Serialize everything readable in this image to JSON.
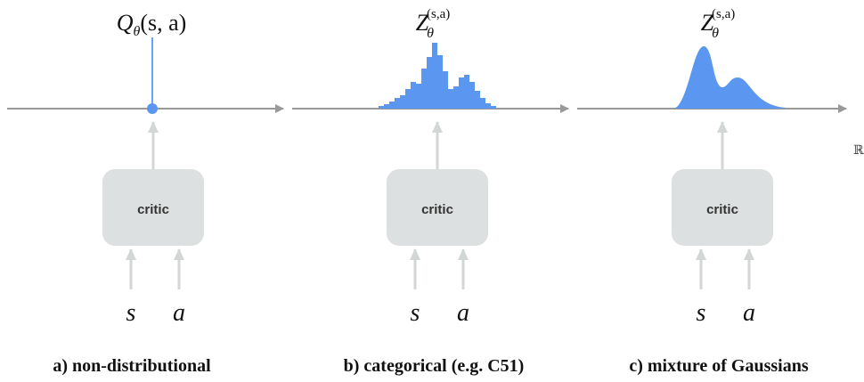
{
  "panels": [
    {
      "label": {
        "base": "Q",
        "sub": "θ",
        "args": "(s, a)"
      },
      "critic": "critic",
      "inputs": [
        "s",
        "a"
      ],
      "caption": "a) non-distributional"
    },
    {
      "label": {
        "base": "Z",
        "sub": "θ",
        "sup": "(s,a)"
      },
      "critic": "critic",
      "inputs": [
        "s",
        "a"
      ],
      "caption": "b) categorical (e.g. C51)"
    },
    {
      "label": {
        "base": "Z",
        "sub": "θ",
        "sup": "(s,a)"
      },
      "critic": "critic",
      "inputs": [
        "s",
        "a"
      ],
      "caption": "c) mixture of Gaussians"
    }
  ],
  "axis_label": "ℝ"
}
